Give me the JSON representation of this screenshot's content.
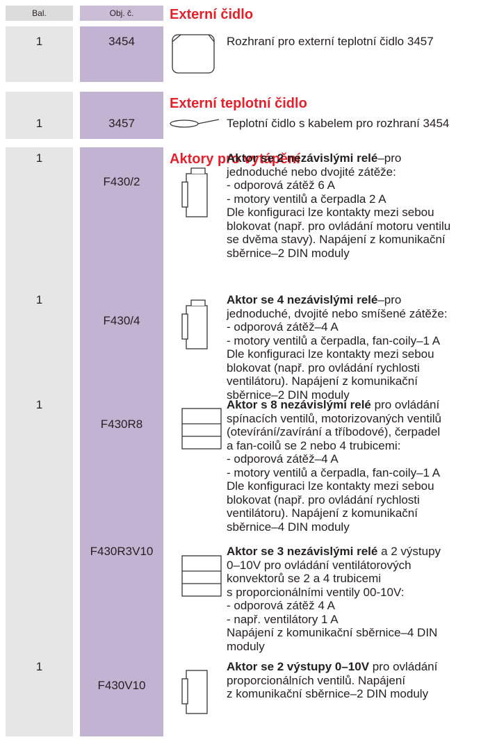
{
  "header": {
    "qty": "Bal.",
    "code": "Obj. č."
  },
  "sections": [
    {
      "title": "Externí čidlo",
      "items": [
        {
          "qty": "1",
          "code": "3454",
          "desc_lines": [
            "Rozhraní pro externí teplotní čidlo 3457"
          ]
        }
      ]
    },
    {
      "title": "Externí teplotní čidlo",
      "items": [
        {
          "qty": "1",
          "code": "3457",
          "desc_lines": [
            "Teplotní čidlo s kabelem pro rozhraní 3454"
          ]
        }
      ]
    },
    {
      "title": "Aktory pro vytápění",
      "items": [
        {
          "qty": "1",
          "code": "F430/2",
          "desc_bold": "Aktor se 2 nezávislými relé",
          "desc_lines": [
            "–pro",
            "jednoduché nebo dvojité zátěže:",
            "- odporová zátěž 6 A",
            "- motory ventilů a čerpadla 2 A",
            "Dle konfiguraci lze kontakty mezi sebou",
            "blokovat (např. pro ovládání motoru ventilu",
            "se dvěma stavy). Napájení z komunikační",
            "sběrnice–2 DIN moduly"
          ]
        },
        {
          "qty": "1",
          "code": "F430/4",
          "desc_bold": "Aktor se 4 nezávislými relé",
          "desc_lines": [
            "–pro",
            "jednoduché, dvojité nebo smíšené zátěže:",
            "- odporová zátěž–4 A",
            "- motory ventilů a čerpadla, fan-coily–1 A",
            "Dle konfiguraci lze kontakty mezi sebou",
            "blokovat (např. pro ovládání rychlosti",
            "ventilátoru). Napájení z komunikační",
            "sběrnice–2 DIN moduly"
          ]
        },
        {
          "qty": "1",
          "code": "F430R8",
          "desc_bold": "Aktor s 8 nezávislými relé",
          "desc_lines": [
            " pro ovládání",
            "spínacích ventilů, motorizovaných ventilů",
            "(otevírání/zavírání a tříbodové), čerpadel",
            "a fan-coilů se 2 nebo 4 trubicemi:",
            "- odporová zátěž–4 A",
            "- motory ventilů a čerpadla, fan-coily–1 A",
            "Dle konfiguraci lze kontakty mezi sebou",
            "blokovat (např. pro ovládání rychlosti",
            "ventilátoru). Napájení z komunikační",
            "sběrnice–4 DIN moduly"
          ]
        },
        {
          "code": "F430R3V10",
          "desc_bold": "Aktor se 3 nezávislými relé",
          "desc_lines": [
            " a 2 výstupy",
            "0–10V pro ovládání ventilátorových",
            "konvektorů se 2 a 4 trubicemi",
            "s proporcionálními ventily 00-10V:",
            "- odporová zátěž 4 A",
            "- např. ventilátory 1 A",
            "Napájení z komunikační sběrnice–4 DIN",
            "moduly"
          ]
        },
        {
          "qty": "1",
          "code": "F430V10",
          "desc_bold": "Aktor se 2 výstupy 0–10V",
          "desc_lines": [
            " pro ovládání",
            "proporcionálních ventilů. Napájení",
            "z komunikační sběrnice–2 DIN moduly"
          ]
        }
      ]
    }
  ]
}
